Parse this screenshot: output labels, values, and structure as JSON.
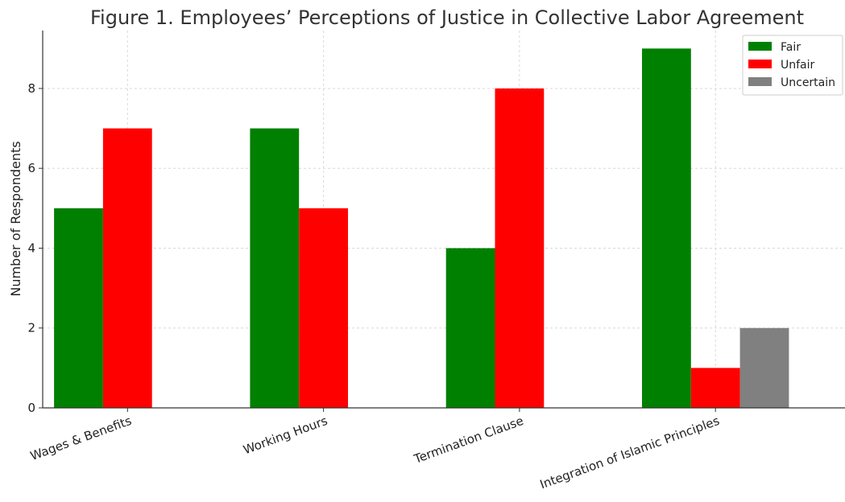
{
  "chart_data": {
    "type": "bar",
    "title": "Figure 1. Employees’ Perceptions of Justice in Collective Labor Agreement",
    "xlabel": "",
    "ylabel": "Number of Respondents",
    "categories": [
      "Wages & Benefits",
      "Working Hours",
      "Termination Clause",
      "Integration of Islamic Principles"
    ],
    "series": [
      {
        "name": "Fair",
        "color": "#008000",
        "values": [
          5,
          7,
          4,
          9
        ]
      },
      {
        "name": "Unfair",
        "color": "#ff0000",
        "values": [
          7,
          5,
          8,
          1
        ]
      },
      {
        "name": "Uncertain",
        "color": "#808080",
        "values": [
          0,
          0,
          0,
          2
        ]
      }
    ],
    "ylim": [
      0,
      9.45
    ],
    "yticks": [
      0,
      2,
      4,
      6,
      8
    ],
    "grid": true,
    "legend_position": "top-right"
  }
}
